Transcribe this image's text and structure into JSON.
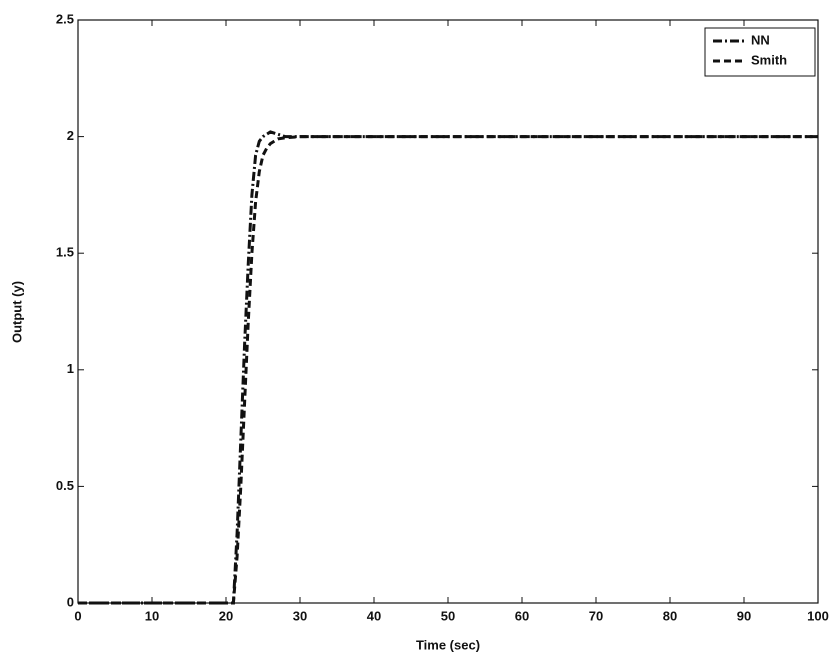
{
  "chart_data": {
    "type": "line",
    "x_label": "Time (sec)",
    "y_label": "Output (y)",
    "x": [
      0,
      20,
      21,
      21.5,
      22,
      22.5,
      23,
      23.5,
      24,
      24.5,
      25,
      25.5,
      26,
      27,
      28,
      30,
      35,
      100
    ],
    "series": [
      {
        "name": "NN",
        "color": "#111111",
        "style": "dashdot",
        "values": [
          0,
          0,
          0,
          0.3,
          0.7,
          1.1,
          1.45,
          1.75,
          1.92,
          1.98,
          2.0,
          2.01,
          2.02,
          2.01,
          2.0,
          2.0,
          2.0,
          2.0
        ]
      },
      {
        "name": "Smith",
        "color": "#111111",
        "style": "dashed",
        "values": [
          0,
          0,
          0,
          0.2,
          0.5,
          0.85,
          1.2,
          1.5,
          1.72,
          1.85,
          1.92,
          1.95,
          1.97,
          1.99,
          1.995,
          2.0,
          2.0,
          2.0
        ]
      }
    ],
    "xlim": [
      0,
      100
    ],
    "xticks": [
      0,
      10,
      20,
      30,
      40,
      50,
      60,
      70,
      80,
      90,
      100
    ],
    "ylim": [
      0,
      2.5
    ],
    "yticks": [
      0,
      0.5,
      1,
      1.5,
      2,
      2.5
    ],
    "legend": "upper right",
    "grid": false
  }
}
